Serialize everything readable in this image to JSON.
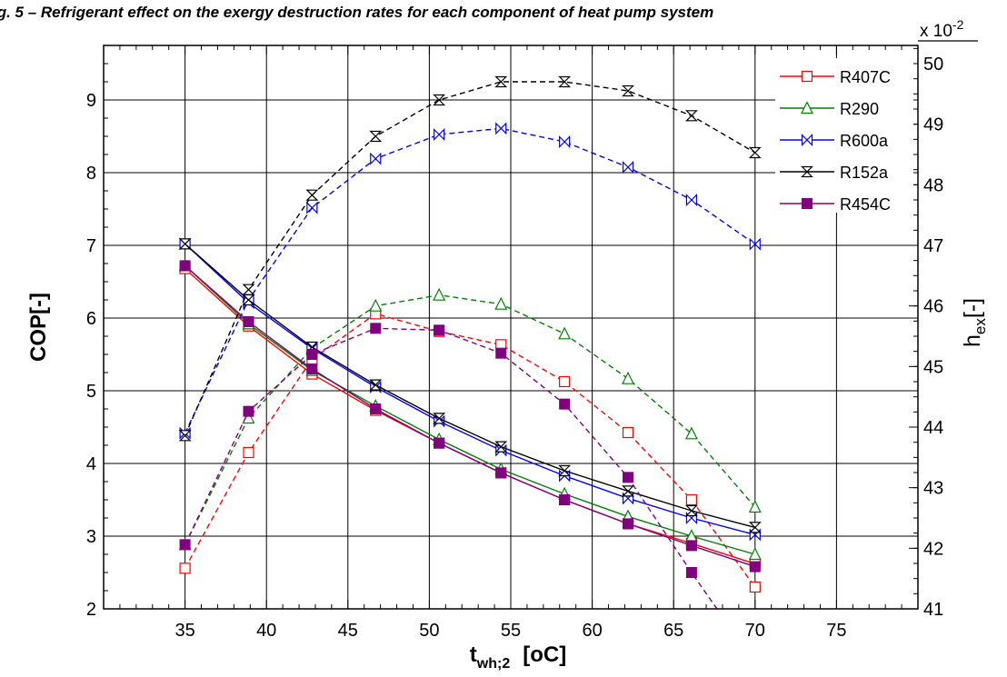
{
  "caption": "ig. 5 – Refrigerant effect on the exergy destruction rates for each component of heat pump system",
  "chart_data": {
    "type": "line",
    "title": "",
    "xlabel": {
      "main": "t",
      "sub": "wh;2",
      "unit": "[oC]"
    },
    "ylabel": "COP[-]",
    "y2label": {
      "main": "h",
      "sub": "ex",
      "suffix": "[-]"
    },
    "y2_multiplier": {
      "base": "x 10",
      "exp": "-2"
    },
    "xlim": [
      30,
      80
    ],
    "ylim": [
      2,
      9.75
    ],
    "y2lim": [
      41,
      50.3
    ],
    "xticks": [
      35,
      40,
      45,
      50,
      55,
      60,
      65,
      70,
      75
    ],
    "yticks": [
      2,
      3,
      4,
      5,
      6,
      7,
      8,
      9
    ],
    "y2ticks": [
      41,
      42,
      43,
      44,
      45,
      46,
      47,
      48,
      49,
      50
    ],
    "grid": true,
    "legend_position": "top-right",
    "x": [
      35,
      38.9,
      42.8,
      46.7,
      50.6,
      54.4,
      58.3,
      62.2,
      66.1,
      70
    ],
    "series": [
      {
        "name": "R407C",
        "color": "#ff0000",
        "marker": "square-open",
        "cop": [
          6.68,
          5.89,
          5.23,
          4.73,
          4.28,
          3.87,
          3.5,
          3.17,
          2.9,
          2.62
        ],
        "hex": [
          41.67,
          43.58,
          45.12,
          45.87,
          45.58,
          45.36,
          44.75,
          43.91,
          42.8,
          41.36
        ]
      },
      {
        "name": "R290",
        "color": "#008000",
        "marker": "triangle-open",
        "cop": [
          6.72,
          5.92,
          5.28,
          4.79,
          4.33,
          3.92,
          3.58,
          3.27,
          3.0,
          2.75
        ],
        "hex": [
          42.06,
          44.15,
          45.3,
          46.0,
          46.18,
          46.03,
          45.54,
          44.8,
          43.89,
          42.68
        ]
      },
      {
        "name": "R600a",
        "color": "#0000ff",
        "marker": "bowtie-h",
        "cop": [
          7.02,
          6.21,
          5.58,
          5.05,
          4.58,
          4.18,
          3.83,
          3.52,
          3.25,
          3.02
        ],
        "hex": [
          43.9,
          46.1,
          47.62,
          48.43,
          48.83,
          48.93,
          48.71,
          48.29,
          47.75,
          47.02
        ]
      },
      {
        "name": "R152a",
        "color": "#000000",
        "marker": "bowtie-v",
        "cop": [
          7.02,
          6.25,
          5.6,
          5.08,
          4.62,
          4.23,
          3.9,
          3.62,
          3.35,
          3.12
        ],
        "hex": [
          43.86,
          46.27,
          47.83,
          48.8,
          49.4,
          49.7,
          49.7,
          49.55,
          49.14,
          48.53
        ]
      },
      {
        "name": "R454C",
        "color": "#800080",
        "marker": "square-filled",
        "cop": [
          6.72,
          5.95,
          5.3,
          4.75,
          4.28,
          3.87,
          3.5,
          3.17,
          2.87,
          2.58
        ],
        "hex": [
          42.06,
          44.26,
          45.2,
          45.63,
          45.6,
          45.22,
          44.38,
          43.17,
          41.6,
          40.1
        ]
      }
    ]
  }
}
